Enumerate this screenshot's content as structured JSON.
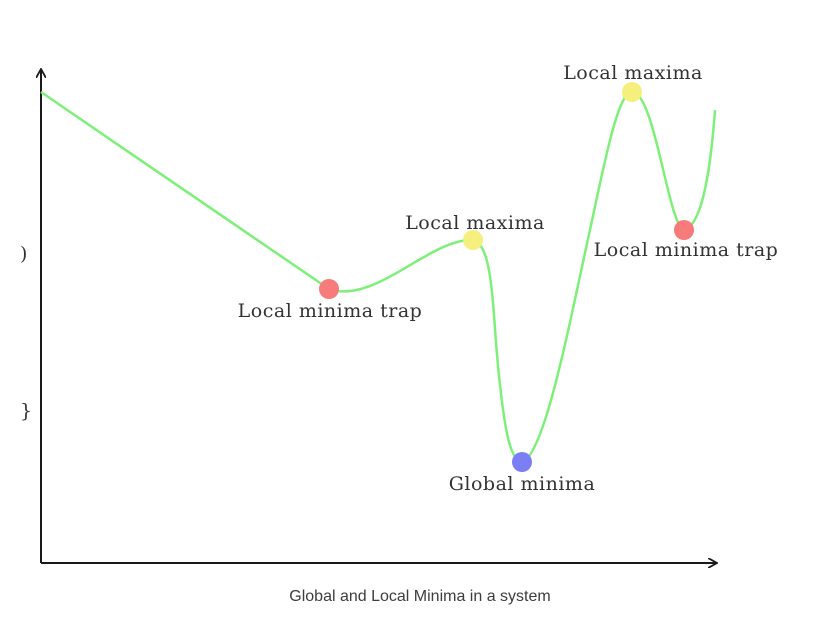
{
  "diagram": {
    "points": [
      {
        "type": "local-minimum",
        "label": "Local minima trap",
        "color": "#f77b7b"
      },
      {
        "type": "local-maximum",
        "label": "Local maxima",
        "color": "#f5ef7d"
      },
      {
        "type": "global-minimum",
        "label": "Global minima",
        "color": "#7b7ef5"
      },
      {
        "type": "local-maximum",
        "label": "Local maxima",
        "color": "#f5ef7d"
      },
      {
        "type": "local-minimum",
        "label": "Local minima trap",
        "color": "#f77b7b"
      }
    ],
    "clipped_tick_labels": [
      ")",
      "}"
    ],
    "curve_color": "#7ef07a",
    "axis_color": "#1a1a1a"
  },
  "caption": "Global and Local Minima in a system"
}
